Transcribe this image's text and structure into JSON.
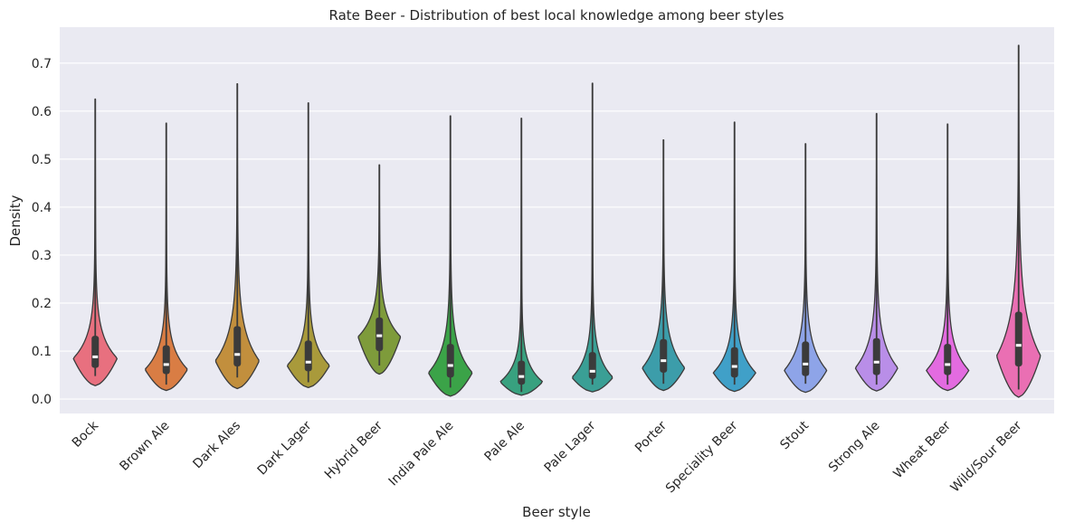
{
  "chart_data": {
    "type": "violin",
    "title": "Rate Beer - Distribution of best local knowledge among beer styles",
    "xlabel": "Beer style",
    "ylabel": "Density",
    "ylim": [
      -0.03,
      0.775
    ],
    "yticks": [
      0.0,
      0.1,
      0.2,
      0.3,
      0.4,
      0.5,
      0.6,
      0.7
    ],
    "ytick_labels": [
      "0.0",
      "0.1",
      "0.2",
      "0.3",
      "0.4",
      "0.5",
      "0.6",
      "0.7"
    ],
    "grid": true,
    "background": "#eaeaf2",
    "categories": [
      {
        "label": "Bock",
        "color": "#e8707f",
        "min": 0.028,
        "q1": 0.065,
        "median": 0.088,
        "q3": 0.132,
        "max": 0.625,
        "whisker_low": 0.048,
        "whisker_high": 0.225,
        "mode": 0.085,
        "half_width": 0.62
      },
      {
        "label": "Brown Ale",
        "color": "#d97d44",
        "min": 0.018,
        "q1": 0.052,
        "median": 0.072,
        "q3": 0.112,
        "max": 0.575,
        "whisker_low": 0.03,
        "whisker_high": 0.195,
        "mode": 0.062,
        "half_width": 0.6
      },
      {
        "label": "Dark Ales",
        "color": "#c28f3d",
        "min": 0.022,
        "q1": 0.068,
        "median": 0.093,
        "q3": 0.152,
        "max": 0.657,
        "whisker_low": 0.045,
        "whisker_high": 0.265,
        "mode": 0.08,
        "half_width": 0.62
      },
      {
        "label": "Dark Lager",
        "color": "#a99a3b",
        "min": 0.024,
        "q1": 0.058,
        "median": 0.077,
        "q3": 0.122,
        "max": 0.617,
        "whisker_low": 0.035,
        "whisker_high": 0.205,
        "mode": 0.07,
        "half_width": 0.6
      },
      {
        "label": "Hybrid Beer",
        "color": "#7e9b3b",
        "min": 0.052,
        "q1": 0.1,
        "median": 0.132,
        "q3": 0.17,
        "max": 0.488,
        "whisker_low": 0.07,
        "whisker_high": 0.262,
        "mode": 0.13,
        "half_width": 0.6
      },
      {
        "label": "India Pale Ale",
        "color": "#3ba348",
        "min": 0.006,
        "q1": 0.045,
        "median": 0.07,
        "q3": 0.115,
        "max": 0.59,
        "whisker_low": 0.024,
        "whisker_high": 0.21,
        "mode": 0.055,
        "half_width": 0.62
      },
      {
        "label": "Pale Ale",
        "color": "#38a17f",
        "min": 0.008,
        "q1": 0.03,
        "median": 0.047,
        "q3": 0.08,
        "max": 0.585,
        "whisker_low": 0.015,
        "whisker_high": 0.145,
        "mode": 0.036,
        "half_width": 0.6
      },
      {
        "label": "Pale Lager",
        "color": "#3a9f95",
        "min": 0.015,
        "q1": 0.042,
        "median": 0.058,
        "q3": 0.098,
        "max": 0.658,
        "whisker_low": 0.03,
        "whisker_high": 0.175,
        "mode": 0.045,
        "half_width": 0.58
      },
      {
        "label": "Porter",
        "color": "#3c9daa",
        "min": 0.018,
        "q1": 0.055,
        "median": 0.08,
        "q3": 0.125,
        "max": 0.54,
        "whisker_low": 0.032,
        "whisker_high": 0.222,
        "mode": 0.065,
        "half_width": 0.6
      },
      {
        "label": "Speciality Beer",
        "color": "#40a0c8",
        "min": 0.016,
        "q1": 0.045,
        "median": 0.068,
        "q3": 0.108,
        "max": 0.577,
        "whisker_low": 0.03,
        "whisker_high": 0.19,
        "mode": 0.055,
        "half_width": 0.6
      },
      {
        "label": "Stout",
        "color": "#8ea4e8",
        "min": 0.014,
        "q1": 0.048,
        "median": 0.073,
        "q3": 0.12,
        "max": 0.532,
        "whisker_low": 0.032,
        "whisker_high": 0.213,
        "mode": 0.06,
        "half_width": 0.6
      },
      {
        "label": "Strong Ale",
        "color": "#b98ee8",
        "min": 0.017,
        "q1": 0.05,
        "median": 0.077,
        "q3": 0.127,
        "max": 0.595,
        "whisker_low": 0.03,
        "whisker_high": 0.225,
        "mode": 0.065,
        "half_width": 0.6
      },
      {
        "label": "Wheat Beer",
        "color": "#e36be0",
        "min": 0.018,
        "q1": 0.05,
        "median": 0.072,
        "q3": 0.115,
        "max": 0.573,
        "whisker_low": 0.03,
        "whisker_high": 0.2,
        "mode": 0.06,
        "half_width": 0.6
      },
      {
        "label": "Wild/Sour Beer",
        "color": "#ea6fb3",
        "min": 0.004,
        "q1": 0.068,
        "median": 0.112,
        "q3": 0.182,
        "max": 0.737,
        "whisker_low": 0.02,
        "whisker_high": 0.338,
        "mode": 0.09,
        "half_width": 0.62
      }
    ]
  }
}
